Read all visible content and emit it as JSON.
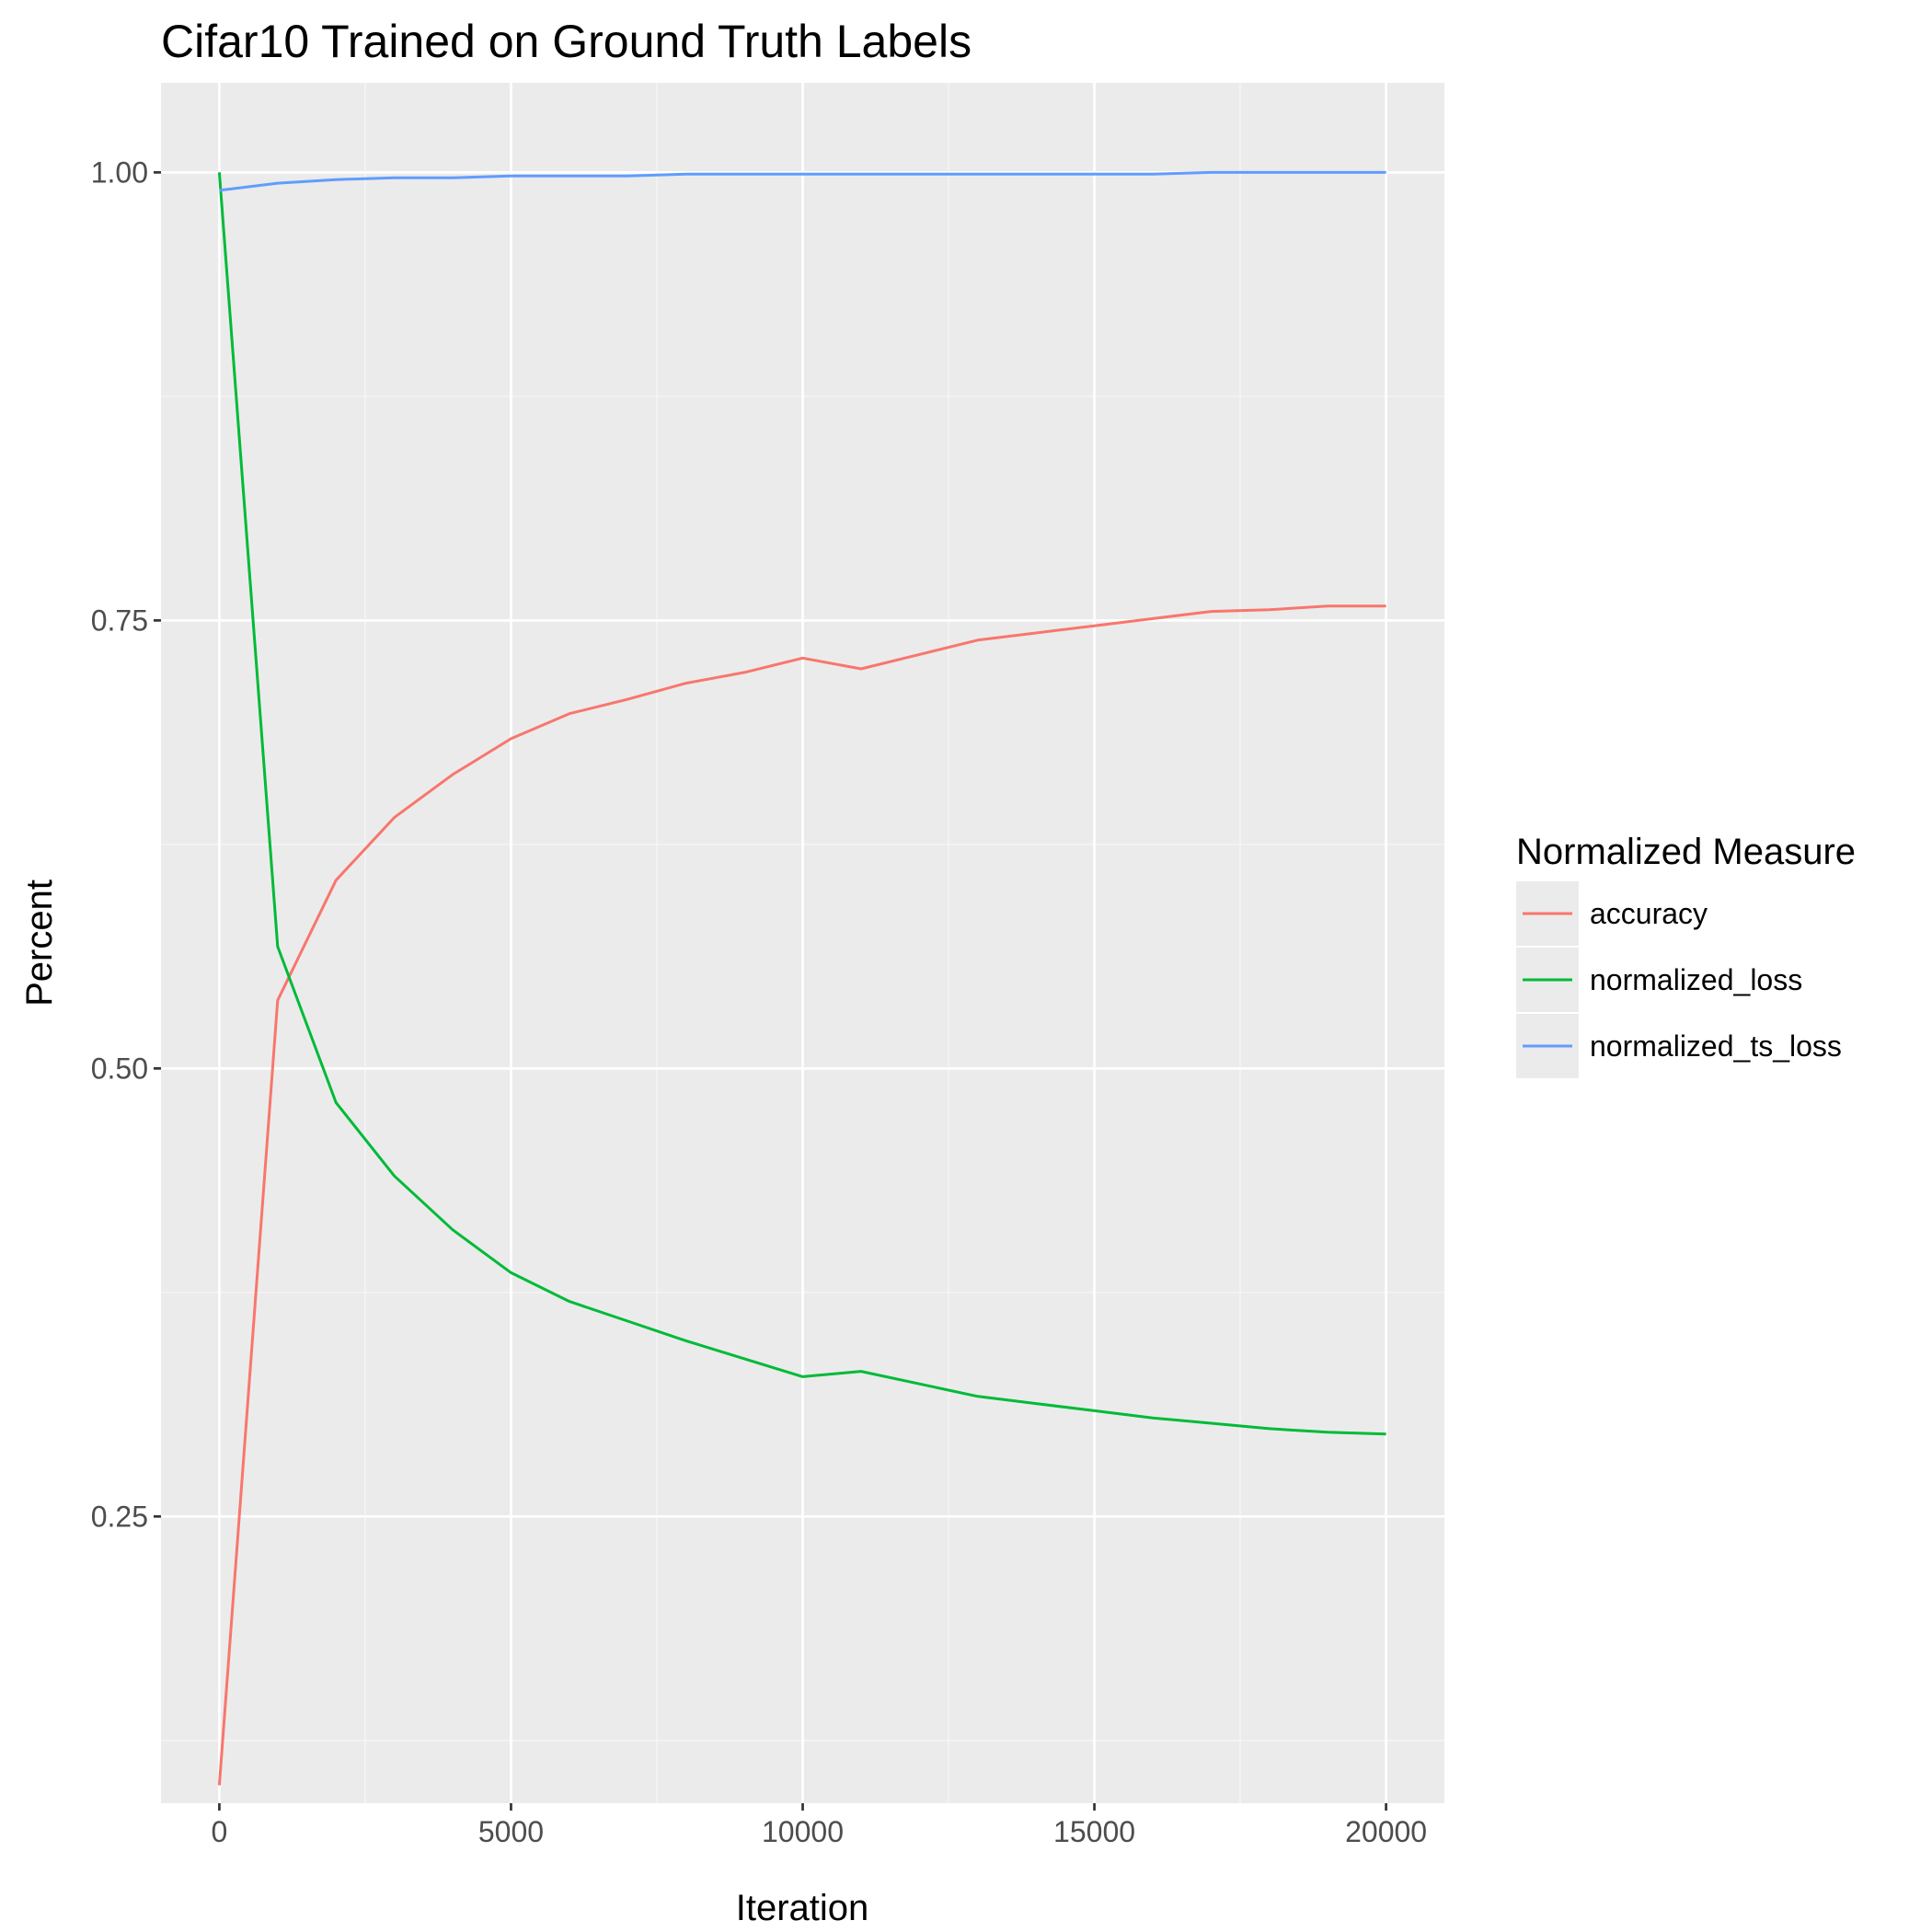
{
  "chart_data": {
    "type": "line",
    "title": "Cifar10 Trained on Ground Truth Labels",
    "xlabel": "Iteration",
    "ylabel": "Percent",
    "xlim": [
      -1000,
      21000
    ],
    "ylim": [
      0.09,
      1.05
    ],
    "xticks": [
      0,
      5000,
      10000,
      15000,
      20000
    ],
    "xtick_labels": [
      "0",
      "5000",
      "10000",
      "15000",
      "20000"
    ],
    "yticks": [
      0.25,
      0.5,
      0.75,
      1.0
    ],
    "ytick_labels": [
      "0.25",
      "0.50",
      "0.75",
      "1.00"
    ],
    "grid": true,
    "legend": {
      "title": "Normalized Measure",
      "position": "right"
    },
    "x": [
      0,
      1000,
      2000,
      3000,
      4000,
      5000,
      6000,
      7000,
      8000,
      9000,
      10000,
      11000,
      12000,
      13000,
      14000,
      15000,
      16000,
      17000,
      18000,
      19000,
      20000
    ],
    "series": [
      {
        "name": "accuracy",
        "color": "#F8766D",
        "values": [
          0.1,
          0.538,
          0.605,
          0.64,
          0.664,
          0.684,
          0.698,
          0.706,
          0.715,
          0.721,
          0.729,
          0.723,
          0.731,
          0.739,
          0.743,
          0.747,
          0.751,
          0.755,
          0.756,
          0.758,
          0.758
        ]
      },
      {
        "name": "normalized_loss",
        "color": "#00BA38",
        "values": [
          1.0,
          0.568,
          0.481,
          0.44,
          0.41,
          0.386,
          0.37,
          0.359,
          0.348,
          0.338,
          0.328,
          0.331,
          0.324,
          0.317,
          0.313,
          0.309,
          0.305,
          0.302,
          0.299,
          0.297,
          0.296
        ]
      },
      {
        "name": "normalized_ts_loss",
        "color": "#619CFF",
        "values": [
          0.99,
          0.994,
          0.996,
          0.997,
          0.997,
          0.998,
          0.998,
          0.998,
          0.999,
          0.999,
          0.999,
          0.999,
          0.999,
          0.999,
          0.999,
          0.999,
          0.999,
          1.0,
          1.0,
          1.0,
          1.0
        ]
      }
    ]
  }
}
